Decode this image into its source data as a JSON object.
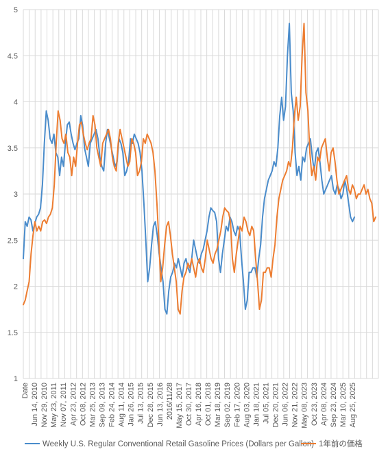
{
  "chart_data": {
    "type": "line",
    "title": "",
    "xlabel": "",
    "ylabel": "",
    "ylim": [
      1,
      5
    ],
    "y_ticks": [
      "1",
      "1.5",
      "2",
      "2.5",
      "3",
      "3.5",
      "4",
      "4.5",
      "5"
    ],
    "x_tick_labels": [
      "Date",
      "Jun 14, 2010",
      "Nov 29, 2010",
      "May 23, 2011",
      "Nov 07, 2011",
      "Apr 23, 2012",
      "Oct 08, 2012",
      "Mar 25, 2013",
      "Sep 09, 2013",
      "Feb 24, 2014",
      "Aug 11, 2014",
      "Jan 26, 2015",
      "Jul 13, 2015",
      "Dec 28, 2015",
      "Jun 13, 2016",
      "2016/11/28",
      "May 15, 2017",
      "Oct 30, 2017",
      "Apr 16, 2018",
      "Oct 01, 2018",
      "Mar 18, 2019",
      "Sep 02, 2019",
      "Feb 17, 2020",
      "Aug 03, 2020",
      "Jan 18, 2021",
      "Jul 05, 2021",
      "Dec 20, 2021",
      "Jun 06, 2022",
      "Nov 21, 2022",
      "May 08, 2023",
      "Oct 23, 2023",
      "Apr 08, 2024",
      "Sep 23, 2024",
      "Mar 10, 2025",
      "Aug 25, 2025"
    ],
    "grid": true,
    "legend_position": "bottom",
    "series": [
      {
        "name": "Weekly U.S. Regular Conventional Retail Gasoline Prices (Dollars per Gallon)",
        "color": "#4a8ccb",
        "values": [
          2.3,
          2.7,
          2.65,
          2.75,
          2.72,
          2.6,
          2.68,
          2.75,
          2.78,
          2.85,
          3.1,
          3.55,
          3.9,
          3.8,
          3.6,
          3.55,
          3.65,
          3.45,
          3.4,
          3.2,
          3.4,
          3.3,
          3.55,
          3.75,
          3.78,
          3.65,
          3.55,
          3.48,
          3.55,
          3.6,
          3.85,
          3.75,
          3.5,
          3.4,
          3.3,
          3.55,
          3.6,
          3.65,
          3.7,
          3.6,
          3.4,
          3.3,
          3.25,
          3.55,
          3.7,
          3.6,
          3.5,
          3.4,
          3.3,
          3.35,
          3.6,
          3.55,
          3.45,
          3.2,
          3.25,
          3.35,
          3.6,
          3.55,
          3.65,
          3.6,
          3.55,
          3.45,
          3.25,
          2.9,
          2.5,
          2.05,
          2.2,
          2.45,
          2.65,
          2.7,
          2.55,
          2.35,
          2.2,
          2.05,
          1.75,
          1.7,
          1.95,
          2.1,
          2.15,
          2.25,
          2.2,
          2.3,
          2.2,
          2.1,
          2.25,
          2.3,
          2.2,
          2.15,
          2.3,
          2.5,
          2.4,
          2.3,
          2.25,
          2.35,
          2.4,
          2.5,
          2.6,
          2.75,
          2.85,
          2.82,
          2.8,
          2.7,
          2.3,
          2.15,
          2.35,
          2.5,
          2.65,
          2.6,
          2.75,
          2.7,
          2.6,
          2.55,
          2.65,
          2.6,
          2.3,
          2.05,
          1.75,
          1.85,
          2.15,
          2.15,
          2.2,
          2.2,
          2.1,
          2.3,
          2.45,
          2.75,
          2.95,
          3.05,
          3.15,
          3.2,
          3.25,
          3.35,
          3.3,
          3.5,
          3.85,
          4.05,
          3.8,
          3.95,
          4.5,
          4.85,
          4.1,
          3.9,
          3.45,
          3.2,
          3.3,
          3.15,
          3.4,
          3.35,
          3.5,
          3.55,
          3.6,
          3.4,
          3.25,
          3.45,
          3.5,
          3.35,
          3.15,
          3.0,
          3.05,
          3.1,
          3.15,
          3.2,
          3.05,
          3.0,
          3.1,
          3.05,
          2.95,
          3.0,
          3.15,
          3.05,
          2.9,
          2.75,
          2.7,
          2.75
        ]
      },
      {
        "name": "1年前の価格",
        "color": "#ed7d31",
        "values": [
          1.8,
          1.85,
          1.95,
          2.05,
          2.35,
          2.55,
          2.7,
          2.6,
          2.65,
          2.6,
          2.7,
          2.72,
          2.68,
          2.75,
          2.78,
          2.85,
          3.1,
          3.55,
          3.9,
          3.8,
          3.6,
          3.55,
          3.65,
          3.45,
          3.4,
          3.2,
          3.4,
          3.3,
          3.55,
          3.75,
          3.78,
          3.65,
          3.55,
          3.48,
          3.55,
          3.6,
          3.85,
          3.75,
          3.5,
          3.4,
          3.3,
          3.55,
          3.6,
          3.65,
          3.7,
          3.6,
          3.4,
          3.3,
          3.25,
          3.55,
          3.7,
          3.6,
          3.5,
          3.4,
          3.3,
          3.35,
          3.6,
          3.55,
          3.45,
          3.2,
          3.25,
          3.35,
          3.6,
          3.55,
          3.65,
          3.6,
          3.55,
          3.45,
          3.25,
          2.9,
          2.5,
          2.05,
          2.2,
          2.45,
          2.65,
          2.7,
          2.55,
          2.35,
          2.2,
          2.05,
          1.75,
          1.7,
          1.95,
          2.1,
          2.15,
          2.25,
          2.2,
          2.3,
          2.2,
          2.1,
          2.25,
          2.3,
          2.2,
          2.15,
          2.3,
          2.5,
          2.4,
          2.3,
          2.25,
          2.35,
          2.4,
          2.5,
          2.6,
          2.75,
          2.85,
          2.82,
          2.8,
          2.7,
          2.3,
          2.15,
          2.35,
          2.5,
          2.65,
          2.6,
          2.75,
          2.7,
          2.6,
          2.55,
          2.65,
          2.6,
          2.3,
          2.05,
          1.75,
          1.85,
          2.15,
          2.15,
          2.2,
          2.2,
          2.1,
          2.3,
          2.45,
          2.75,
          2.95,
          3.05,
          3.15,
          3.2,
          3.25,
          3.35,
          3.3,
          3.5,
          3.85,
          4.05,
          3.8,
          3.95,
          4.5,
          4.85,
          4.1,
          3.9,
          3.45,
          3.2,
          3.3,
          3.15,
          3.4,
          3.35,
          3.5,
          3.55,
          3.6,
          3.4,
          3.25,
          3.45,
          3.5,
          3.35,
          3.15,
          3.0,
          3.05,
          3.1,
          3.15,
          3.2,
          3.05,
          3.0,
          3.1,
          3.05,
          2.95,
          3.0,
          3.0,
          3.05,
          3.1,
          3.0,
          3.05,
          2.95,
          2.9,
          2.7,
          2.75
        ]
      }
    ]
  }
}
